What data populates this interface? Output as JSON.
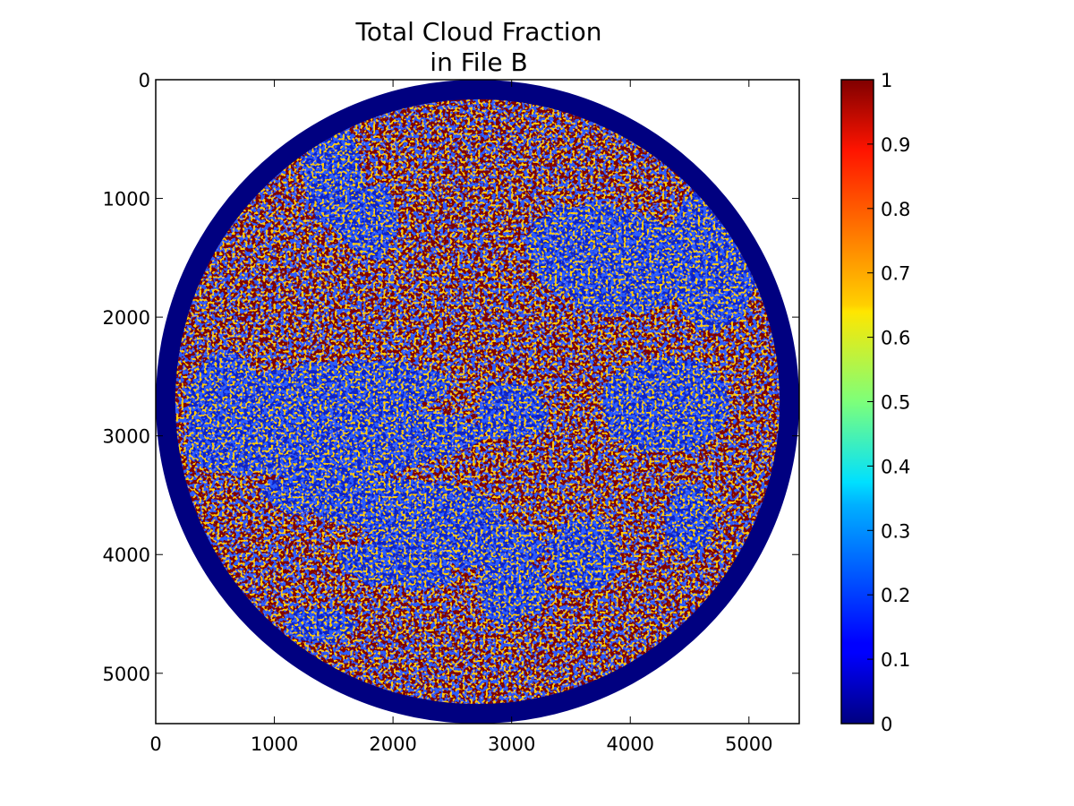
{
  "chart_data": {
    "type": "heatmap",
    "title": [
      "Total Cloud Fraction",
      "in File B"
    ],
    "xlabel": "",
    "ylabel": "",
    "x_range": [
      0,
      5424
    ],
    "y_range": [
      0,
      5424
    ],
    "y_inverted": true,
    "x_ticks": [
      0,
      1000,
      2000,
      3000,
      4000,
      5000
    ],
    "y_ticks": [
      0,
      1000,
      2000,
      3000,
      4000,
      5000
    ],
    "x_tick_labels": [
      "0",
      "1000",
      "2000",
      "3000",
      "4000",
      "5000"
    ],
    "y_tick_labels": [
      "0",
      "1000",
      "2000",
      "3000",
      "4000",
      "5000"
    ],
    "colormap": "jet",
    "colorbar": {
      "range": [
        0,
        1
      ],
      "ticks": [
        0,
        0.1,
        0.2,
        0.3,
        0.4,
        0.5,
        0.6,
        0.7,
        0.8,
        0.9,
        1
      ],
      "tick_labels": [
        "0",
        "0.1",
        "0.2",
        "0.3",
        "0.4",
        "0.5",
        "0.6",
        "0.7",
        "0.8",
        "0.9",
        "1"
      ],
      "placement": "right"
    },
    "disk": {
      "center": [
        2712,
        2712
      ],
      "radius": 2712,
      "limb_value": 0,
      "limb_width": 165,
      "dominant_value": 1
    },
    "clear_regions": [
      {
        "x": 1500,
        "y": 800,
        "rx": 250,
        "ry": 500,
        "angle": -10
      },
      {
        "x": 1800,
        "y": 1200,
        "rx": 250,
        "ry": 300,
        "angle": 0
      },
      {
        "x": 3800,
        "y": 1500,
        "rx": 700,
        "ry": 450,
        "angle": 15
      },
      {
        "x": 4700,
        "y": 1500,
        "rx": 400,
        "ry": 600,
        "angle": 0
      },
      {
        "x": 1400,
        "y": 2650,
        "rx": 1100,
        "ry": 260,
        "angle": -5
      },
      {
        "x": 1500,
        "y": 3050,
        "rx": 1250,
        "ry": 280,
        "angle": -3
      },
      {
        "x": 1900,
        "y": 3550,
        "rx": 1000,
        "ry": 220,
        "angle": 5
      },
      {
        "x": 2500,
        "y": 3850,
        "rx": 800,
        "ry": 230,
        "angle": 8
      },
      {
        "x": 3000,
        "y": 4300,
        "rx": 300,
        "ry": 280,
        "angle": 0
      },
      {
        "x": 3600,
        "y": 4000,
        "rx": 300,
        "ry": 300,
        "angle": 0
      },
      {
        "x": 4300,
        "y": 2750,
        "rx": 550,
        "ry": 400,
        "angle": 0
      },
      {
        "x": 600,
        "y": 2800,
        "rx": 350,
        "ry": 500,
        "angle": 0
      },
      {
        "x": 2000,
        "y": 4100,
        "rx": 500,
        "ry": 180,
        "angle": 10
      },
      {
        "x": 1400,
        "y": 4600,
        "rx": 300,
        "ry": 150,
        "angle": 0
      },
      {
        "x": 4500,
        "y": 3700,
        "rx": 200,
        "ry": 300,
        "angle": 0
      },
      {
        "x": 3000,
        "y": 2800,
        "rx": 300,
        "ry": 250,
        "angle": 0
      }
    ]
  }
}
